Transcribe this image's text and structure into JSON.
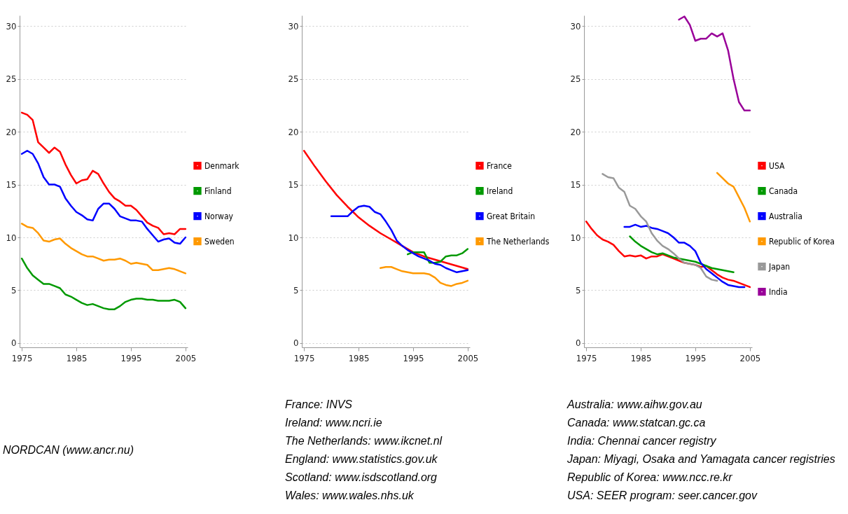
{
  "chart_data": [
    {
      "type": "line",
      "xlim": [
        1974.6,
        2005.4
      ],
      "xticks": [
        1975,
        1985,
        1995,
        2005
      ],
      "ylim": [
        -0.4,
        31
      ],
      "yticks": [
        0,
        5,
        10,
        15,
        20,
        25,
        30
      ],
      "grid": "y",
      "legend": "right",
      "annotations": [
        "NORDCAN (www.ancr.nu)"
      ],
      "series": [
        {
          "name": "Denmark",
          "color": "#ff0000",
          "x": [
            1975,
            1976,
            1977,
            1978,
            1979,
            1980,
            1981,
            1982,
            1983,
            1984,
            1985,
            1986,
            1987,
            1988,
            1989,
            1990,
            1991,
            1992,
            1993,
            1994,
            1995,
            1996,
            1997,
            1998,
            1999,
            2000,
            2001,
            2002,
            2003,
            2004,
            2005
          ],
          "values": [
            21.8,
            21.6,
            21.1,
            19.0,
            18.5,
            18.0,
            18.5,
            18.1,
            16.9,
            15.9,
            15.1,
            15.4,
            15.5,
            16.3,
            16.0,
            15.1,
            14.3,
            13.7,
            13.4,
            13.0,
            13.0,
            12.6,
            12.0,
            11.4,
            11.1,
            10.9,
            10.3,
            10.4,
            10.3,
            10.8,
            10.8
          ]
        },
        {
          "name": "Finland",
          "color": "#009900",
          "x": [
            1975,
            1976,
            1977,
            1978,
            1979,
            1980,
            1981,
            1982,
            1983,
            1984,
            1985,
            1986,
            1987,
            1988,
            1989,
            1990,
            1991,
            1992,
            1993,
            1994,
            1995,
            1996,
            1997,
            1998,
            1999,
            2000,
            2001,
            2002,
            2003,
            2004,
            2005
          ],
          "values": [
            8.0,
            7.1,
            6.4,
            6.0,
            5.6,
            5.6,
            5.4,
            5.2,
            4.6,
            4.4,
            4.1,
            3.8,
            3.6,
            3.7,
            3.5,
            3.3,
            3.2,
            3.2,
            3.5,
            3.9,
            4.1,
            4.2,
            4.2,
            4.1,
            4.1,
            4.0,
            4.0,
            4.0,
            4.1,
            3.9,
            3.3
          ]
        },
        {
          "name": "Norway",
          "color": "#0000ff",
          "x": [
            1975,
            1976,
            1977,
            1978,
            1979,
            1980,
            1981,
            1982,
            1983,
            1984,
            1985,
            1986,
            1987,
            1988,
            1989,
            1990,
            1991,
            1992,
            1993,
            1994,
            1995,
            1996,
            1997,
            1998,
            1999,
            2000,
            2001,
            2002,
            2003,
            2004,
            2005
          ],
          "values": [
            17.9,
            18.2,
            17.9,
            17.0,
            15.7,
            15.0,
            15.0,
            14.8,
            13.7,
            13.0,
            12.4,
            12.1,
            11.7,
            11.6,
            12.7,
            13.2,
            13.2,
            12.7,
            12.0,
            11.8,
            11.6,
            11.6,
            11.5,
            10.8,
            10.2,
            9.6,
            9.8,
            9.9,
            9.5,
            9.4,
            10.0
          ]
        },
        {
          "name": "Sweden",
          "color": "#ff9900",
          "x": [
            1975,
            1976,
            1977,
            1978,
            1979,
            1980,
            1981,
            1982,
            1983,
            1984,
            1985,
            1986,
            1987,
            1988,
            1989,
            1990,
            1991,
            1992,
            1993,
            1994,
            1995,
            1996,
            1997,
            1998,
            1999,
            2000,
            2001,
            2002,
            2003,
            2004,
            2005
          ],
          "values": [
            11.3,
            11.0,
            10.9,
            10.4,
            9.7,
            9.6,
            9.8,
            9.9,
            9.4,
            9.0,
            8.7,
            8.4,
            8.2,
            8.2,
            8.0,
            7.8,
            7.9,
            7.9,
            8.0,
            7.8,
            7.5,
            7.6,
            7.5,
            7.4,
            6.9,
            6.9,
            7.0,
            7.1,
            7.0,
            6.8,
            6.6
          ]
        }
      ]
    },
    {
      "type": "line",
      "xlim": [
        1974.6,
        2005.4
      ],
      "xticks": [
        1975,
        1985,
        1995,
        2005
      ],
      "ylim": [
        -0.4,
        31
      ],
      "yticks": [
        0,
        5,
        10,
        15,
        20,
        25,
        30
      ],
      "grid": "y",
      "legend": "right",
      "annotations": [
        "France: INVS",
        "Ireland: www.ncri.ie",
        "The Netherlands: www.ikcnet.nl",
        "England: www.statistics.gov.uk",
        "Scotland: www.isdscotland.org",
        "Wales: www.wales.nhs.uk"
      ],
      "series": [
        {
          "name": "France",
          "color": "#ff0000",
          "x": [
            1975,
            1977,
            1979,
            1981,
            1983,
            1985,
            1987,
            1989,
            1991,
            1993,
            1995,
            1997,
            1999,
            2001,
            2003,
            2005
          ],
          "values": [
            18.2,
            16.7,
            15.3,
            14.0,
            12.9,
            11.9,
            11.1,
            10.4,
            9.8,
            9.2,
            8.6,
            8.2,
            7.9,
            7.6,
            7.3,
            7.0
          ]
        },
        {
          "name": "Ireland",
          "color": "#009900",
          "x": [
            1994,
            1995,
            1996,
            1997,
            1998,
            1999,
            2000,
            2001,
            2002,
            2003,
            2004,
            2005
          ],
          "values": [
            8.4,
            8.6,
            8.6,
            8.6,
            7.6,
            7.6,
            7.7,
            8.2,
            8.3,
            8.3,
            8.5,
            8.9
          ]
        },
        {
          "name": "Great Britain",
          "color": "#0000ff",
          "x": [
            1980,
            1981,
            1982,
            1983,
            1984,
            1985,
            1986,
            1987,
            1988,
            1989,
            1990,
            1991,
            1992,
            1993,
            1994,
            1995,
            1996,
            1997,
            1998,
            1999,
            2000,
            2001,
            2002,
            2003,
            2004,
            2005
          ],
          "values": [
            12.0,
            12.0,
            12.0,
            12.0,
            12.5,
            12.9,
            13.0,
            12.9,
            12.4,
            12.2,
            11.5,
            10.7,
            9.7,
            9.2,
            8.8,
            8.5,
            8.2,
            8.0,
            7.8,
            7.5,
            7.4,
            7.1,
            6.9,
            6.7,
            6.8,
            6.9
          ]
        },
        {
          "name": "The Netherlands",
          "color": "#ff9900",
          "x": [
            1989,
            1990,
            1991,
            1992,
            1993,
            1994,
            1995,
            1996,
            1997,
            1998,
            1999,
            2000,
            2001,
            2002,
            2003,
            2004,
            2005
          ],
          "values": [
            7.1,
            7.2,
            7.2,
            7.0,
            6.8,
            6.7,
            6.6,
            6.6,
            6.6,
            6.5,
            6.2,
            5.7,
            5.5,
            5.4,
            5.6,
            5.7,
            5.9
          ]
        }
      ]
    },
    {
      "type": "line",
      "xlim": [
        1974.6,
        2005.4
      ],
      "xticks": [
        1975,
        1985,
        1995,
        2005
      ],
      "ylim": [
        -0.4,
        31
      ],
      "yticks": [
        0,
        5,
        10,
        15,
        20,
        25,
        30
      ],
      "grid": "y",
      "legend": "right",
      "annotations": [
        "Australia: www.aihw.gov.au",
        "Canada: www.statcan.gc.ca",
        "India: Chennai cancer registry",
        "Japan: Miyagi, Osaka and Yamagata cancer registries",
        "Republic of Korea: www.ncc.re.kr",
        "USA: SEER program: seer.cancer.gov"
      ],
      "series": [
        {
          "name": "USA",
          "color": "#ff0000",
          "x": [
            1975,
            1976,
            1977,
            1978,
            1979,
            1980,
            1981,
            1982,
            1983,
            1984,
            1985,
            1986,
            1987,
            1988,
            1989,
            1990,
            1991,
            1992,
            1993,
            1994,
            1995,
            1996,
            1997,
            1998,
            1999,
            2000,
            2001,
            2002,
            2003,
            2004,
            2005
          ],
          "values": [
            11.5,
            10.8,
            10.2,
            9.8,
            9.6,
            9.3,
            8.7,
            8.2,
            8.3,
            8.2,
            8.3,
            8.0,
            8.2,
            8.2,
            8.4,
            8.2,
            8.0,
            7.8,
            7.6,
            7.5,
            7.4,
            7.2,
            7.3,
            6.9,
            6.5,
            6.2,
            6.0,
            5.9,
            5.7,
            5.5,
            5.3
          ]
        },
        {
          "name": "Canada",
          "color": "#009900",
          "x": [
            1983,
            1984,
            1985,
            1986,
            1987,
            1988,
            1989,
            1990,
            1991,
            1992,
            1993,
            1994,
            1995,
            1996,
            1997,
            1998,
            1999,
            2000,
            2001,
            2002
          ],
          "values": [
            10.1,
            9.6,
            9.2,
            8.9,
            8.6,
            8.4,
            8.5,
            8.3,
            8.1,
            8.0,
            7.9,
            7.8,
            7.7,
            7.5,
            7.3,
            7.1,
            7.0,
            6.9,
            6.8,
            6.7
          ]
        },
        {
          "name": "Australia",
          "color": "#0000ff",
          "x": [
            1982,
            1983,
            1984,
            1985,
            1986,
            1987,
            1988,
            1989,
            1990,
            1991,
            1992,
            1993,
            1994,
            1995,
            1996,
            1997,
            1998,
            1999,
            2000,
            2001,
            2002,
            2003,
            2004
          ],
          "values": [
            11.0,
            11.0,
            11.2,
            11.0,
            11.1,
            10.9,
            10.8,
            10.6,
            10.4,
            10.0,
            9.5,
            9.5,
            9.2,
            8.7,
            7.6,
            7.0,
            6.6,
            6.2,
            5.8,
            5.5,
            5.4,
            5.3,
            5.3
          ]
        },
        {
          "name": "Republic of Korea",
          "color": "#ff9900",
          "x": [
            1999,
            2000,
            2001,
            2002,
            2003,
            2004,
            2005
          ],
          "values": [
            16.1,
            15.6,
            15.1,
            14.8,
            13.8,
            12.8,
            11.5
          ]
        },
        {
          "name": "Japan",
          "color": "#999999",
          "x": [
            1978,
            1979,
            1980,
            1981,
            1982,
            1983,
            1984,
            1985,
            1986,
            1987,
            1988,
            1989,
            1990,
            1991,
            1992,
            1993,
            1994,
            1995,
            1996,
            1997,
            1998,
            1999
          ],
          "values": [
            16.0,
            15.7,
            15.6,
            14.7,
            14.3,
            13.0,
            12.7,
            12.0,
            11.5,
            10.4,
            9.7,
            9.2,
            8.9,
            8.5,
            8.0,
            7.6,
            7.5,
            7.4,
            7.1,
            6.3,
            6.0,
            5.9
          ]
        },
        {
          "name": "India",
          "color": "#990099",
          "x": [
            1992,
            1993,
            1994,
            1995,
            1996,
            1997,
            1998,
            1999,
            2000,
            2001,
            2002,
            2003,
            2004,
            2005
          ],
          "values": [
            30.6,
            30.9,
            30.1,
            28.6,
            28.8,
            28.8,
            29.3,
            29.0,
            29.3,
            27.7,
            25.0,
            22.8,
            22.0,
            22.0
          ]
        }
      ]
    }
  ]
}
